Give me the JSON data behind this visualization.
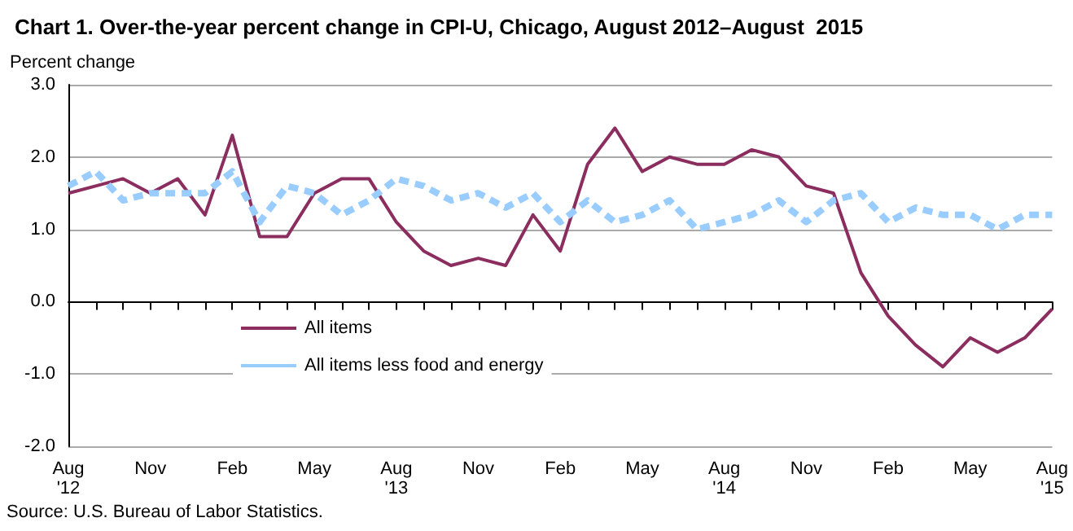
{
  "chart_data": {
    "type": "line",
    "title": "Chart 1. Over-the-year percent change in CPI-U, Chicago, August 2012–August  2015",
    "ylabel": "Percent change",
    "annotations": [
      "Source: U.S. Bureau of Labor Statistics."
    ],
    "categories": [
      "Aug\n'12",
      null,
      null,
      "Nov",
      null,
      null,
      "Feb",
      null,
      null,
      "May",
      null,
      null,
      "Aug\n'13",
      null,
      null,
      "Nov",
      null,
      null,
      "Feb",
      null,
      null,
      "May",
      null,
      null,
      "Aug\n'14",
      null,
      null,
      "Nov",
      null,
      null,
      "Feb",
      null,
      null,
      "May",
      null,
      null,
      "Aug\n'15"
    ],
    "series": [
      {
        "name": "All items",
        "color": "#8b2d5e",
        "line_style": "solid",
        "values": [
          1.5,
          1.6,
          1.7,
          1.5,
          1.7,
          1.2,
          2.3,
          0.9,
          0.9,
          1.5,
          1.7,
          1.7,
          1.1,
          0.7,
          0.5,
          0.6,
          0.5,
          1.2,
          0.7,
          1.9,
          2.4,
          1.8,
          2.0,
          1.9,
          1.9,
          2.1,
          2.0,
          1.6,
          1.5,
          0.4,
          -0.2,
          -0.6,
          -0.9,
          -0.5,
          -0.7,
          -0.5,
          -0.1
        ]
      },
      {
        "name": "All items less food and energy",
        "color": "#99ccff",
        "line_style": "dashed",
        "values": [
          1.6,
          1.8,
          1.4,
          1.5,
          1.5,
          1.5,
          1.8,
          1.1,
          1.6,
          1.5,
          1.2,
          1.4,
          1.7,
          1.6,
          1.4,
          1.5,
          1.3,
          1.5,
          1.1,
          1.4,
          1.1,
          1.2,
          1.4,
          1.0,
          1.1,
          1.2,
          1.4,
          1.1,
          1.4,
          1.5,
          1.1,
          1.3,
          1.2,
          1.2,
          1.0,
          1.2,
          1.2
        ]
      }
    ],
    "ylim": [
      -2,
      3
    ],
    "yticks": [
      {
        "value": -2,
        "label": "-2.0"
      },
      {
        "value": -1,
        "label": "-1.0"
      },
      {
        "value": 0,
        "label": "0.0"
      },
      {
        "value": 1,
        "label": "1.0"
      },
      {
        "value": 2,
        "label": "2.0"
      },
      {
        "value": 3,
        "label": "3.0"
      }
    ],
    "grid": "y",
    "legend": "bottom left",
    "marker": "none"
  }
}
